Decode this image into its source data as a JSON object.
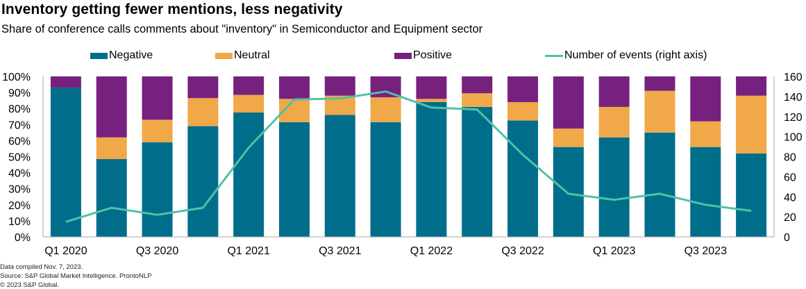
{
  "header": {
    "title": "Inventory getting fewer mentions, less negativity",
    "subtitle": "Share of conference calls comments about \"inventory\" in Semiconductor and Equipment sector"
  },
  "legend": [
    {
      "name": "Negative",
      "kind": "bar",
      "color": "#006E8A"
    },
    {
      "name": "Neutral",
      "kind": "bar",
      "color": "#F0A848"
    },
    {
      "name": "Positive",
      "kind": "bar",
      "color": "#77217F"
    },
    {
      "name": "Number of events (right axis)",
      "kind": "line",
      "color": "#52C0A8"
    }
  ],
  "footer": {
    "line1": "Data compiled Nov. 7, 2023.",
    "line2": "Source: S&P Global Market Intelligence. ProntoNLP",
    "line3": "© 2023 S&P Global."
  },
  "chart_data": {
    "type": "bar",
    "stacked": true,
    "title": "Inventory getting fewer mentions, less negativity",
    "subtitle": "Share of conference calls comments about \"inventory\" in Semiconductor and Equipment sector",
    "categories": [
      "Q1 2020",
      "Q2 2020",
      "Q3 2020",
      "Q4 2020",
      "Q1 2021",
      "Q2 2021",
      "Q3 2021",
      "Q4 2021",
      "Q1 2022",
      "Q2 2022",
      "Q3 2022",
      "Q4 2022",
      "Q1 2023",
      "Q2 2023",
      "Q3 2023",
      "Q4 2023"
    ],
    "x_tick_labels": [
      "Q1 2020",
      "",
      "Q3 2020",
      "",
      "Q1 2021",
      "",
      "Q3 2021",
      "",
      "Q1 2022",
      "",
      "Q3 2022",
      "",
      "Q1 2023",
      "",
      "Q3 2023",
      ""
    ],
    "series": [
      {
        "name": "Negative",
        "axis": "left",
        "color": "#006E8A",
        "values": [
          93,
          48.5,
          59,
          69,
          77.5,
          71.5,
          76,
          71.5,
          84,
          81,
          72.5,
          56,
          62,
          65,
          56,
          52
        ]
      },
      {
        "name": "Neutral",
        "axis": "left",
        "color": "#F0A848",
        "values": [
          0,
          13.5,
          14,
          17.5,
          11,
          14.5,
          12,
          15.5,
          2,
          8.5,
          11.5,
          11.5,
          19,
          26,
          16,
          36
        ]
      },
      {
        "name": "Positive",
        "axis": "left",
        "color": "#77217F",
        "values": [
          7,
          38,
          27,
          13.5,
          11.5,
          14,
          12,
          13,
          14,
          10.5,
          16,
          32.5,
          19,
          9,
          28,
          12
        ]
      },
      {
        "name": "Number of events (right axis)",
        "axis": "right",
        "type": "line",
        "color": "#52C0A8",
        "values": [
          15,
          29,
          22,
          29,
          89,
          137,
          138,
          145,
          129,
          127,
          82,
          43,
          37,
          43,
          32,
          26
        ]
      }
    ],
    "y_left": {
      "min": 0,
      "max": 100,
      "ticks": [
        "0%",
        "10%",
        "20%",
        "30%",
        "40%",
        "50%",
        "60%",
        "70%",
        "80%",
        "90%",
        "100%"
      ]
    },
    "y_right": {
      "min": 0,
      "max": 160,
      "ticks": [
        "0",
        "20",
        "40",
        "60",
        "80",
        "100",
        "120",
        "140",
        "160"
      ]
    },
    "legend_position": "top",
    "grid": false
  }
}
